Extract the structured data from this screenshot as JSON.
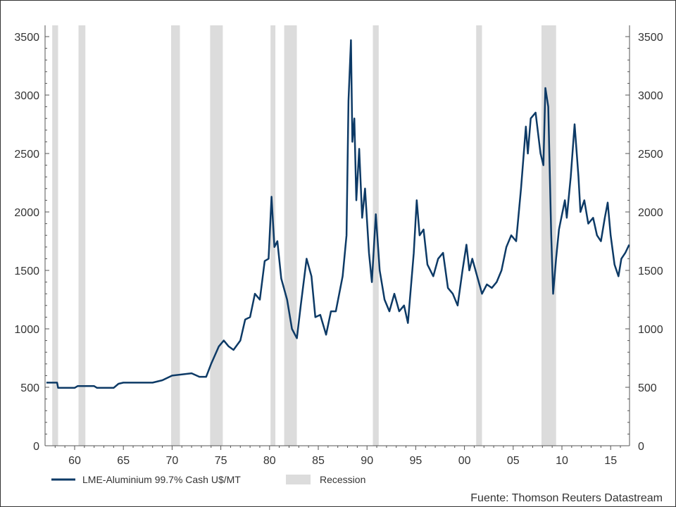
{
  "chart_data": {
    "type": "line",
    "title": "",
    "xlabel": "",
    "ylabel": "",
    "source": "Fuente: Thomson Reuters Datastream",
    "xlim": [
      1957,
      2017
    ],
    "ylim": [
      0,
      3500
    ],
    "y_ticks": [
      0,
      500,
      1000,
      1500,
      2000,
      2500,
      3000,
      3500
    ],
    "x_ticks": [
      {
        "year": 1960,
        "label": "60"
      },
      {
        "year": 1965,
        "label": "65"
      },
      {
        "year": 1970,
        "label": "70"
      },
      {
        "year": 1975,
        "label": "75"
      },
      {
        "year": 1980,
        "label": "80"
      },
      {
        "year": 1985,
        "label": "85"
      },
      {
        "year": 1990,
        "label": "90"
      },
      {
        "year": 1995,
        "label": "95"
      },
      {
        "year": 2000,
        "label": "00"
      },
      {
        "year": 2005,
        "label": "05"
      },
      {
        "year": 2010,
        "label": "10"
      },
      {
        "year": 2015,
        "label": "15"
      }
    ],
    "legend": [
      {
        "name": "LME-Aluminium 99.7% Cash U$/MT",
        "type": "line",
        "color": "#0d3a66"
      },
      {
        "name": "Recession",
        "type": "band",
        "color": "#dcdcdc"
      }
    ],
    "legend_position": "bottom-left",
    "recessions": [
      [
        1957.7,
        1958.3
      ],
      [
        1960.4,
        1961.1
      ],
      [
        1969.9,
        1970.8
      ],
      [
        1973.9,
        1975.2
      ],
      [
        1980.1,
        1980.6
      ],
      [
        1981.5,
        1982.8
      ],
      [
        1990.6,
        1991.2
      ],
      [
        2001.2,
        2001.8
      ],
      [
        2007.9,
        2009.4
      ]
    ],
    "series": [
      {
        "name": "LME-Aluminium 99.7% Cash U$/MT",
        "color": "#0d3a66",
        "points": [
          [
            1957.1,
            540
          ],
          [
            1958.2,
            540
          ],
          [
            1958.3,
            495
          ],
          [
            1960,
            495
          ],
          [
            1960.3,
            510
          ],
          [
            1962,
            510
          ],
          [
            1962.3,
            495
          ],
          [
            1964,
            495
          ],
          [
            1964.5,
            530
          ],
          [
            1965,
            540
          ],
          [
            1968,
            540
          ],
          [
            1969,
            560
          ],
          [
            1970,
            600
          ],
          [
            1971,
            610
          ],
          [
            1972,
            620
          ],
          [
            1972.8,
            590
          ],
          [
            1973.5,
            590
          ],
          [
            1974,
            700
          ],
          [
            1974.8,
            850
          ],
          [
            1975.3,
            900
          ],
          [
            1975.8,
            850
          ],
          [
            1976.3,
            820
          ],
          [
            1977,
            900
          ],
          [
            1977.5,
            1080
          ],
          [
            1978,
            1100
          ],
          [
            1978.5,
            1300
          ],
          [
            1979,
            1250
          ],
          [
            1979.5,
            1580
          ],
          [
            1979.9,
            1600
          ],
          [
            1980.2,
            2130
          ],
          [
            1980.5,
            1700
          ],
          [
            1980.8,
            1750
          ],
          [
            1981.2,
            1430
          ],
          [
            1981.8,
            1250
          ],
          [
            1982.3,
            1000
          ],
          [
            1982.8,
            920
          ],
          [
            1983.2,
            1200
          ],
          [
            1983.8,
            1600
          ],
          [
            1984.3,
            1450
          ],
          [
            1984.7,
            1100
          ],
          [
            1985.2,
            1120
          ],
          [
            1985.8,
            950
          ],
          [
            1986.3,
            1150
          ],
          [
            1986.8,
            1150
          ],
          [
            1987.5,
            1450
          ],
          [
            1987.9,
            1800
          ],
          [
            1988.1,
            2950
          ],
          [
            1988.35,
            3470
          ],
          [
            1988.5,
            2600
          ],
          [
            1988.7,
            2800
          ],
          [
            1988.9,
            2100
          ],
          [
            1989.2,
            2540
          ],
          [
            1989.5,
            1950
          ],
          [
            1989.8,
            2200
          ],
          [
            1990.2,
            1650
          ],
          [
            1990.5,
            1400
          ],
          [
            1990.9,
            1980
          ],
          [
            1991.3,
            1500
          ],
          [
            1991.8,
            1250
          ],
          [
            1992.3,
            1150
          ],
          [
            1992.8,
            1300
          ],
          [
            1993.3,
            1150
          ],
          [
            1993.8,
            1200
          ],
          [
            1994.2,
            1050
          ],
          [
            1994.8,
            1650
          ],
          [
            1995.1,
            2100
          ],
          [
            1995.4,
            1800
          ],
          [
            1995.8,
            1850
          ],
          [
            1996.2,
            1550
          ],
          [
            1996.8,
            1450
          ],
          [
            1997.3,
            1600
          ],
          [
            1997.8,
            1650
          ],
          [
            1998.3,
            1350
          ],
          [
            1998.8,
            1300
          ],
          [
            1999.3,
            1200
          ],
          [
            1999.8,
            1500
          ],
          [
            2000.2,
            1720
          ],
          [
            2000.5,
            1500
          ],
          [
            2000.8,
            1600
          ],
          [
            2001.3,
            1450
          ],
          [
            2001.8,
            1300
          ],
          [
            2002.3,
            1380
          ],
          [
            2002.8,
            1350
          ],
          [
            2003.3,
            1400
          ],
          [
            2003.8,
            1500
          ],
          [
            2004.3,
            1700
          ],
          [
            2004.8,
            1800
          ],
          [
            2005.3,
            1750
          ],
          [
            2005.8,
            2200
          ],
          [
            2006.3,
            2730
          ],
          [
            2006.5,
            2500
          ],
          [
            2006.8,
            2800
          ],
          [
            2007.3,
            2850
          ],
          [
            2007.8,
            2500
          ],
          [
            2008.1,
            2400
          ],
          [
            2008.3,
            3060
          ],
          [
            2008.6,
            2900
          ],
          [
            2008.9,
            1800
          ],
          [
            2009.1,
            1300
          ],
          [
            2009.4,
            1600
          ],
          [
            2009.7,
            1850
          ],
          [
            2010.3,
            2100
          ],
          [
            2010.5,
            1950
          ],
          [
            2010.9,
            2300
          ],
          [
            2011.3,
            2750
          ],
          [
            2011.7,
            2300
          ],
          [
            2011.9,
            2000
          ],
          [
            2012.3,
            2100
          ],
          [
            2012.7,
            1900
          ],
          [
            2013.2,
            1950
          ],
          [
            2013.6,
            1800
          ],
          [
            2014.0,
            1750
          ],
          [
            2014.4,
            1950
          ],
          [
            2014.7,
            2080
          ],
          [
            2015.0,
            1800
          ],
          [
            2015.4,
            1550
          ],
          [
            2015.8,
            1450
          ],
          [
            2016.1,
            1600
          ],
          [
            2016.5,
            1650
          ],
          [
            2016.9,
            1720
          ]
        ]
      }
    ]
  }
}
